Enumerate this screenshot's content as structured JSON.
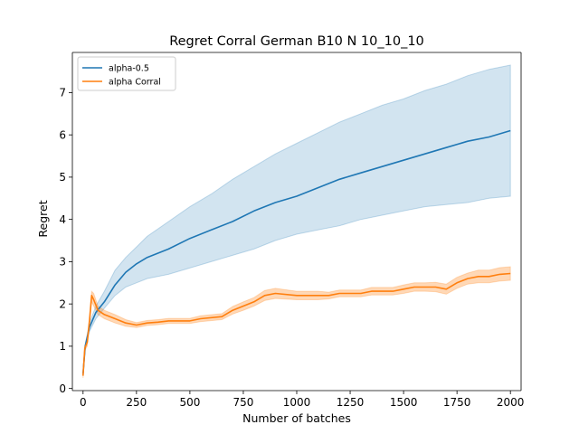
{
  "chart_data": {
    "type": "line",
    "title": "Regret Corral German B10 N 10_10_10",
    "xlabel": "Number of batches",
    "ylabel": "Regret",
    "xlim": [
      -50,
      2050
    ],
    "ylim": [
      -0.05,
      7.95
    ],
    "xticks": [
      0,
      250,
      500,
      750,
      1000,
      1250,
      1500,
      1750,
      2000
    ],
    "yticks": [
      0,
      1,
      2,
      3,
      4,
      5,
      6,
      7
    ],
    "grid": false,
    "legend_position": "upper-left",
    "series": [
      {
        "name": "alpha-0.5",
        "color": "#1f77b4",
        "band_color": "#1f77b4",
        "x": [
          0,
          10,
          30,
          60,
          100,
          150,
          200,
          250,
          300,
          400,
          500,
          600,
          700,
          800,
          900,
          1000,
          1100,
          1200,
          1300,
          1400,
          1500,
          1600,
          1700,
          1800,
          1900,
          2000
        ],
        "y": [
          0.35,
          1.0,
          1.45,
          1.8,
          2.05,
          2.45,
          2.75,
          2.95,
          3.1,
          3.3,
          3.55,
          3.75,
          3.95,
          4.2,
          4.4,
          4.55,
          4.75,
          4.95,
          5.1,
          5.25,
          5.4,
          5.55,
          5.7,
          5.85,
          5.95,
          6.1
        ],
        "lower": [
          0.3,
          0.95,
          1.35,
          1.65,
          1.9,
          2.2,
          2.4,
          2.5,
          2.6,
          2.7,
          2.85,
          3.0,
          3.15,
          3.3,
          3.5,
          3.65,
          3.75,
          3.85,
          4.0,
          4.1,
          4.2,
          4.3,
          4.35,
          4.4,
          4.5,
          4.55
        ],
        "upper": [
          0.4,
          1.05,
          1.55,
          1.95,
          2.3,
          2.8,
          3.1,
          3.35,
          3.6,
          3.95,
          4.3,
          4.6,
          4.95,
          5.25,
          5.55,
          5.8,
          6.05,
          6.3,
          6.5,
          6.7,
          6.85,
          7.05,
          7.2,
          7.4,
          7.55,
          7.65
        ]
      },
      {
        "name": "alpha Corral",
        "color": "#ff7f0e",
        "band_color": "#ff7f0e",
        "x": [
          0,
          8,
          20,
          30,
          40,
          50,
          70,
          100,
          150,
          200,
          250,
          300,
          350,
          400,
          500,
          550,
          650,
          700,
          750,
          800,
          850,
          900,
          1000,
          1050,
          1100,
          1150,
          1200,
          1250,
          1300,
          1350,
          1400,
          1450,
          1500,
          1550,
          1600,
          1650,
          1700,
          1750,
          1800,
          1850,
          1900,
          1950,
          2000
        ],
        "y": [
          0.3,
          0.95,
          1.1,
          1.6,
          2.2,
          2.1,
          1.85,
          1.75,
          1.65,
          1.55,
          1.5,
          1.55,
          1.57,
          1.6,
          1.6,
          1.65,
          1.7,
          1.85,
          1.95,
          2.05,
          2.2,
          2.25,
          2.2,
          2.2,
          2.2,
          2.2,
          2.25,
          2.25,
          2.25,
          2.3,
          2.3,
          2.3,
          2.35,
          2.4,
          2.4,
          2.4,
          2.35,
          2.5,
          2.6,
          2.65,
          2.65,
          2.7,
          2.72
        ],
        "lower": [
          0.25,
          0.9,
          1.0,
          1.5,
          2.05,
          1.95,
          1.75,
          1.65,
          1.55,
          1.47,
          1.44,
          1.49,
          1.51,
          1.54,
          1.54,
          1.58,
          1.63,
          1.76,
          1.85,
          1.95,
          2.08,
          2.13,
          2.1,
          2.1,
          2.1,
          2.12,
          2.17,
          2.17,
          2.17,
          2.21,
          2.21,
          2.21,
          2.25,
          2.3,
          2.3,
          2.29,
          2.23,
          2.37,
          2.47,
          2.5,
          2.5,
          2.54,
          2.56
        ],
        "upper": [
          0.35,
          1.0,
          1.2,
          1.7,
          2.3,
          2.25,
          1.95,
          1.85,
          1.75,
          1.63,
          1.56,
          1.61,
          1.63,
          1.66,
          1.66,
          1.72,
          1.77,
          1.94,
          2.05,
          2.15,
          2.32,
          2.37,
          2.3,
          2.3,
          2.3,
          2.28,
          2.33,
          2.33,
          2.33,
          2.39,
          2.39,
          2.39,
          2.45,
          2.5,
          2.5,
          2.51,
          2.47,
          2.63,
          2.73,
          2.8,
          2.8,
          2.86,
          2.88
        ]
      }
    ]
  }
}
